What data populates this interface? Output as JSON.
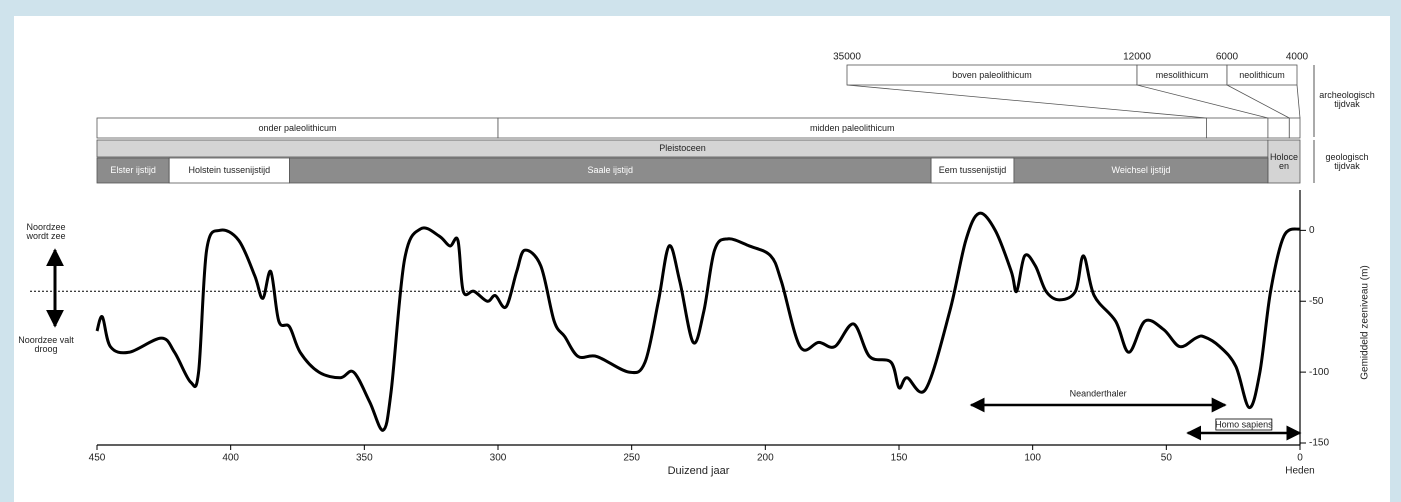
{
  "chart_data": {
    "type": "line",
    "x_label": "Duizend jaar",
    "y_label": "Gemiddeld zeeniveau (m)",
    "xlim": [
      450,
      0
    ],
    "ylim": [
      -150,
      20
    ],
    "xticks": [
      450,
      400,
      350,
      300,
      250,
      200,
      150,
      100,
      50,
      0
    ],
    "yticks": [
      0,
      -50,
      -100,
      -150
    ],
    "x_end_label": "Heden",
    "reference_level": -43,
    "x": [
      450,
      448,
      445,
      438,
      426,
      421,
      415,
      412,
      409,
      404,
      397,
      391,
      388,
      385,
      382,
      378,
      374,
      367,
      359,
      354,
      348,
      343,
      340,
      335,
      329,
      322,
      318,
      315,
      313,
      309,
      304,
      301,
      297,
      293,
      290,
      284,
      279,
      275,
      270,
      263,
      251,
      245,
      240,
      236,
      232,
      227,
      223,
      219,
      214,
      206,
      198,
      194,
      187,
      180,
      174,
      167,
      161,
      153,
      150,
      147,
      140,
      131,
      125,
      120,
      114,
      108,
      106,
      103,
      99,
      95,
      90,
      84,
      81,
      77,
      69,
      64,
      58,
      51,
      45,
      39,
      36,
      30,
      24,
      19,
      15,
      11,
      6,
      0
    ],
    "series": [
      {
        "name": "Zeeniveau",
        "color": "#000000",
        "values": [
          -71,
          -61,
          -82,
          -86,
          -76,
          -86,
          -107,
          -100,
          -14,
          0,
          -7,
          -32,
          -48,
          -29,
          -64,
          -68,
          -86,
          -100,
          -104,
          -100,
          -121,
          -141,
          -114,
          -21,
          1,
          -4,
          -11,
          -7,
          -43,
          -43,
          -50,
          -46,
          -54,
          -29,
          -14,
          -25,
          -64,
          -75,
          -89,
          -89,
          -100,
          -93,
          -50,
          -11,
          -36,
          -79,
          -57,
          -14,
          -6,
          -11,
          -18,
          -36,
          -82,
          -79,
          -82,
          -66,
          -89,
          -93,
          -111,
          -104,
          -112,
          -57,
          -7,
          12,
          0,
          -29,
          -43,
          -18,
          -25,
          -43,
          -49,
          -43,
          -18,
          -46,
          -64,
          -86,
          -64,
          -70,
          -82,
          -76,
          -75,
          -82,
          -96,
          -125,
          -100,
          -43,
          -4,
          1
        ]
      }
    ],
    "sea_labels": [
      "Noordzee wordt zee",
      "Noordzee valt droog"
    ],
    "ranges": [
      {
        "label": "Neanderthaler",
        "start": 123,
        "end": 28
      },
      {
        "label": "Homo sapiens",
        "start": 42,
        "end": 0
      }
    ],
    "archaeology_periods": [
      {
        "label": "onder paleolithicum",
        "start": 450,
        "end": 300
      },
      {
        "label": "midden paleolithicum",
        "start": 300,
        "end": 35
      },
      {
        "label": null,
        "start": 35,
        "end": 12
      },
      {
        "label": null,
        "start": 12,
        "end": 4
      },
      {
        "label": null,
        "start": 4,
        "end": 0
      }
    ],
    "epochs": [
      {
        "label": "Pleistoceen",
        "start": 450,
        "end": 12
      },
      {
        "label": "Holoceen",
        "start": 12,
        "end": 0
      }
    ],
    "stages": [
      {
        "label": "Elster ijstijd",
        "start": 450,
        "end": 423,
        "color": "#8c8c8c"
      },
      {
        "label": "Holstein tussenijstijd",
        "start": 423,
        "end": 378,
        "color": "#ffffff"
      },
      {
        "label": "Saale ijstijd",
        "start": 378,
        "end": 138,
        "color": "#8c8c8c"
      },
      {
        "label": "Eem tussenijstijd",
        "start": 138,
        "end": 107,
        "color": "#ffffff"
      },
      {
        "label": "Weichsel ijstijd",
        "start": 107,
        "end": 12,
        "color": "#8c8c8c"
      }
    ],
    "inset_ticks": [
      35000,
      12000,
      6000,
      4000
    ],
    "inset_periods": [
      "boven paleolithicum",
      "mesolithicum",
      "neolithicum"
    ],
    "side_labels": [
      "archeologisch tijdvak",
      "geologisch tijdvak"
    ]
  }
}
